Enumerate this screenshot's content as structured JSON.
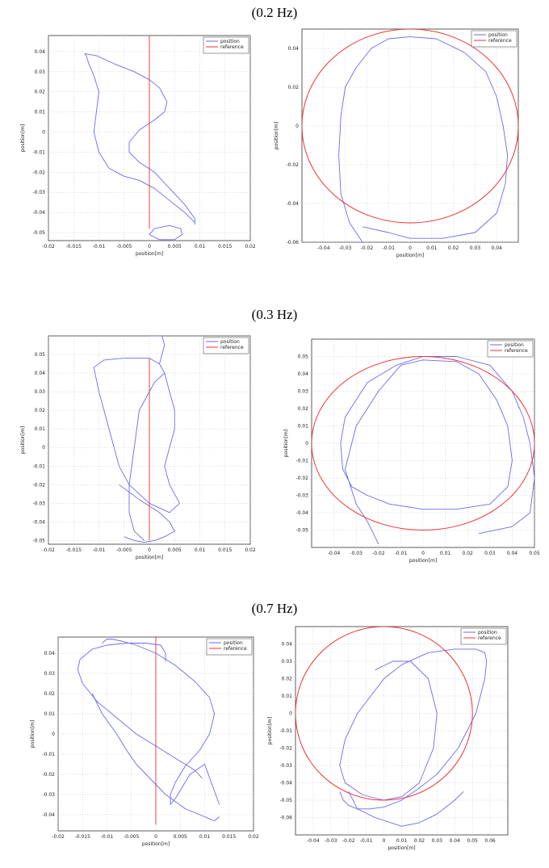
{
  "rows": [
    {
      "title": "(0.2 Hz)"
    },
    {
      "title": "(0.3 Hz)"
    },
    {
      "title": "(0.7 Hz)"
    }
  ],
  "colors": {
    "position": "#6a6af0",
    "reference": "#f03030"
  },
  "chart_data": [
    {
      "type": "line",
      "row": 0,
      "side": "left",
      "xlabel": "position[m]",
      "ylabel": "position[m]",
      "xlim": [
        -0.02,
        0.02
      ],
      "ylim": [
        -0.054,
        0.048
      ],
      "xticks": [
        -0.02,
        -0.015,
        -0.01,
        -0.005,
        0,
        0.005,
        0.01,
        0.015,
        0.02
      ],
      "xticklabels": [
        "-0.02",
        "-0.015",
        "-0.01",
        "-0.005",
        "0",
        "0.005",
        "0.01",
        "0.015",
        "0.02"
      ],
      "yticks": [
        -0.05,
        -0.04,
        -0.03,
        -0.02,
        -0.01,
        0,
        0.01,
        0.02,
        0.03,
        0.04
      ],
      "yticklabels": [
        "-0.05",
        "-0.04",
        "-0.03",
        "-0.02",
        "-0.01",
        "0",
        "0.01",
        "0.02",
        "0.03",
        "0.04"
      ],
      "grid": true,
      "legend": "top-right",
      "series": [
        {
          "name": "position",
          "color": "#6a6af0",
          "x": [
            0.009,
            0.007,
            0.004,
            0.001,
            -0.002,
            -0.005,
            -0.008,
            -0.01,
            -0.011,
            -0.0105,
            -0.01,
            -0.011,
            -0.012,
            -0.0125,
            -0.0128,
            -0.0105,
            -0.007,
            -0.003,
            0,
            0.002,
            0.0035,
            0.003,
            0.001,
            -0.002,
            -0.004,
            -0.004,
            -0.002,
            0.001,
            0.004,
            0.007,
            0.009,
            0.009
          ],
          "y": [
            -0.045,
            -0.04,
            -0.034,
            -0.028,
            -0.024,
            -0.022,
            -0.018,
            -0.01,
            0,
            0.01,
            0.02,
            0.028,
            0.034,
            0.038,
            0.039,
            0.038,
            0.034,
            0.03,
            0.026,
            0.022,
            0.015,
            0.01,
            0.006,
            0.001,
            -0.005,
            -0.01,
            -0.015,
            -0.02,
            -0.028,
            -0.036,
            -0.043,
            -0.046
          ]
        },
        {
          "name": "",
          "color": "#6a6af0",
          "x": [
            0.005,
            0.0065,
            0.0062,
            0.004,
            0.001,
            0.0,
            0.002,
            0.005
          ],
          "y": [
            -0.0535,
            -0.051,
            -0.048,
            -0.0465,
            -0.048,
            -0.051,
            -0.0535,
            -0.0535
          ]
        },
        {
          "name": "reference",
          "color": "#f03030",
          "x": [
            0,
            0
          ],
          "y": [
            -0.048,
            0.048
          ]
        }
      ]
    },
    {
      "type": "line",
      "row": 0,
      "side": "right",
      "xlabel": "position[m]",
      "ylabel": "position[m]",
      "xlim": [
        -0.05,
        0.05
      ],
      "ylim": [
        -0.06,
        0.05
      ],
      "xticks": [
        -0.04,
        -0.03,
        -0.02,
        -0.01,
        0,
        0.01,
        0.02,
        0.03,
        0.04
      ],
      "xticklabels": [
        "-0.04",
        "-0.03",
        "-0.02",
        "-0.01",
        "0",
        "0.01",
        "0.02",
        "0.03",
        "0.04"
      ],
      "yticks": [
        -0.06,
        -0.04,
        -0.02,
        0,
        0.02,
        0.04
      ],
      "yticklabels": [
        "-0.06",
        "-0.04",
        "-0.02",
        "0",
        "0.02",
        "0.04"
      ],
      "grid": true,
      "legend": "top-right",
      "series": [
        {
          "name": "position",
          "color": "#6a6af0",
          "x": [
            -0.022,
            -0.028,
            -0.032,
            -0.033,
            -0.032,
            -0.03,
            -0.025,
            -0.018,
            -0.01,
            0,
            0.012,
            0.025,
            0.035,
            0.04,
            0.043,
            0.045,
            0.044,
            0.04,
            0.03,
            0.015,
            0.0,
            -0.01,
            -0.022
          ],
          "y": [
            -0.06,
            -0.05,
            -0.035,
            -0.015,
            0.005,
            0.02,
            0.03,
            0.04,
            0.045,
            0.046,
            0.045,
            0.038,
            0.028,
            0.015,
            0.0,
            -0.015,
            -0.03,
            -0.045,
            -0.055,
            -0.058,
            -0.058,
            -0.055,
            -0.052
          ]
        },
        {
          "name": "reference",
          "type": "circle",
          "color": "#f03030",
          "center": [
            0,
            0
          ],
          "radius": 0.05
        }
      ]
    },
    {
      "type": "line",
      "row": 1,
      "side": "left",
      "xlabel": "position[m]",
      "ylabel": "position[m]",
      "xlim": [
        -0.02,
        0.02
      ],
      "ylim": [
        -0.052,
        0.06
      ],
      "xticks": [
        -0.02,
        -0.015,
        -0.01,
        -0.005,
        0,
        0.005,
        0.01,
        0.015,
        0.02
      ],
      "xticklabels": [
        "-0.02",
        "-0.015",
        "-0.01",
        "-0.005",
        "0",
        "0.005",
        "0.01",
        "0.015",
        "0.02"
      ],
      "yticks": [
        -0.05,
        -0.04,
        -0.03,
        -0.02,
        -0.01,
        0,
        0.01,
        0.02,
        0.03,
        0.04,
        0.05
      ],
      "yticklabels": [
        "-0.05",
        "-0.04",
        "-0.03",
        "-0.02",
        "-0.01",
        "0",
        "0.01",
        "0.02",
        "0.03",
        "0.04",
        "0.05"
      ],
      "grid": true,
      "legend": "top-right",
      "series": [
        {
          "name": "position",
          "color": "#6a6af0",
          "x": [
            -0.0005,
            0.0025,
            0.003,
            0.0025,
            0.002,
            0.003,
            0.004,
            0.005,
            0.005,
            0.004,
            0.003,
            0.004,
            0.006,
            0.004,
            0.0,
            -0.004,
            -0.006,
            -0.007,
            -0.008,
            -0.009,
            -0.01,
            -0.011,
            -0.009,
            -0.005,
            0.0,
            0.002,
            0.003,
            0.001,
            -0.002,
            -0.003,
            -0.004,
            -0.004,
            -0.003,
            -0.001
          ],
          "y": [
            0.06,
            0.06,
            0.055,
            0.05,
            0.045,
            0.04,
            0.03,
            0.02,
            0.01,
            0.0,
            -0.01,
            -0.02,
            -0.03,
            -0.035,
            -0.03,
            -0.02,
            -0.01,
            0.0,
            0.01,
            0.02,
            0.03,
            0.043,
            0.047,
            0.048,
            0.048,
            0.045,
            0.04,
            0.035,
            0.02,
            0.0,
            -0.02,
            -0.035,
            -0.045,
            -0.05
          ]
        },
        {
          "name": "",
          "color": "#6a6af0",
          "x": [
            -0.006,
            -0.002,
            0.002,
            0.004,
            0.005,
            0.003,
            0.001,
            -0.001,
            -0.003,
            -0.005
          ],
          "y": [
            -0.02,
            -0.028,
            -0.035,
            -0.04,
            -0.045,
            -0.048,
            -0.05,
            -0.051,
            -0.05,
            -0.048
          ]
        },
        {
          "name": "reference",
          "color": "#f03030",
          "x": [
            0,
            0
          ],
          "y": [
            -0.05,
            0.048
          ]
        }
      ]
    },
    {
      "type": "line",
      "row": 1,
      "side": "right",
      "xlabel": "position[m]",
      "ylabel": "position[m]",
      "xlim": [
        -0.05,
        0.05
      ],
      "ylim": [
        -0.06,
        0.06
      ],
      "xticks": [
        -0.04,
        -0.03,
        -0.02,
        -0.01,
        0,
        0.01,
        0.02,
        0.03,
        0.04,
        0.05
      ],
      "xticklabels": [
        "-0.04",
        "-0.03",
        "-0.02",
        "-0.01",
        "0",
        "0.01",
        "0.02",
        "0.03",
        "0.04",
        "0.05"
      ],
      "yticks": [
        -0.05,
        -0.04,
        -0.03,
        -0.02,
        -0.01,
        0,
        0.01,
        0.02,
        0.03,
        0.04,
        0.05
      ],
      "yticklabels": [
        "-0.05",
        "-0.04",
        "-0.03",
        "-0.02",
        "-0.01",
        "0",
        "0.01",
        "0.02",
        "0.03",
        "0.04",
        "0.05"
      ],
      "grid": true,
      "legend": "top-right",
      "series": [
        {
          "name": "position",
          "color": "#6a6af0",
          "x": [
            0.025,
            0.04,
            0.048,
            0.05,
            0.048,
            0.045,
            0.04,
            0.03,
            0.015,
            0.0,
            -0.012,
            -0.025,
            -0.035,
            -0.037,
            -0.036,
            -0.032,
            -0.025,
            -0.015,
            0.0,
            0.015,
            0.03,
            0.038,
            0.04,
            0.038,
            0.033,
            0.025,
            0.015,
            0.0,
            -0.01,
            -0.02,
            -0.03,
            -0.035,
            -0.03,
            -0.025,
            -0.02
          ],
          "y": [
            -0.052,
            -0.048,
            -0.04,
            -0.02,
            0.0,
            0.015,
            0.03,
            0.045,
            0.05,
            0.05,
            0.045,
            0.035,
            0.015,
            0.0,
            -0.015,
            -0.025,
            -0.03,
            -0.035,
            -0.038,
            -0.038,
            -0.035,
            -0.025,
            -0.01,
            0.01,
            0.025,
            0.04,
            0.047,
            0.048,
            0.045,
            0.03,
            0.01,
            -0.015,
            -0.035,
            -0.045,
            -0.058
          ]
        },
        {
          "name": "reference",
          "type": "circle",
          "color": "#f03030",
          "center": [
            0,
            0
          ],
          "radius": 0.05
        }
      ]
    },
    {
      "type": "line",
      "row": 2,
      "side": "left",
      "xlabel": "position[m]",
      "ylabel": "position[m]",
      "xlim": [
        -0.02,
        0.02
      ],
      "ylim": [
        -0.048,
        0.048
      ],
      "xticks": [
        -0.02,
        -0.015,
        -0.01,
        -0.005,
        0,
        0.005,
        0.01,
        0.015,
        0.02
      ],
      "xticklabels": [
        "-0.02",
        "-0.015",
        "-0.01",
        "-0.005",
        "0",
        "0.005",
        "0.01",
        "0.015",
        "0.02"
      ],
      "yticks": [
        -0.04,
        -0.03,
        -0.02,
        -0.01,
        0,
        0.01,
        0.02,
        0.03,
        0.04
      ],
      "yticklabels": [
        "-0.04",
        "-0.03",
        "-0.02",
        "-0.01",
        "0",
        "0.01",
        "0.02",
        "0.03",
        "0.04"
      ],
      "grid": true,
      "legend": "top-right",
      "series": [
        {
          "name": "position",
          "color": "#6a6af0",
          "x": [
            0.0095,
            0.008,
            0.004,
            0.0,
            -0.004,
            -0.008,
            -0.012,
            -0.015,
            -0.016,
            -0.0155,
            -0.013,
            -0.01,
            -0.006,
            -0.002,
            0.001,
            0.002,
            0.002
          ],
          "y": [
            -0.022,
            -0.018,
            -0.012,
            -0.006,
            0.0,
            0.008,
            0.016,
            0.025,
            0.032,
            0.037,
            0.042,
            0.044,
            0.045,
            0.045,
            0.044,
            0.04,
            0.036
          ]
        },
        {
          "name": "",
          "color": "#6a6af0",
          "x": [
            -0.011,
            -0.01,
            -0.009,
            -0.007,
            -0.004,
            0.0,
            0.004,
            0.008,
            0.011,
            0.012,
            0.011,
            0.009,
            0.006,
            0.004,
            0.003,
            0.003,
            0.004,
            0.007,
            0.01,
            0.013
          ],
          "y": [
            0.045,
            0.047,
            0.047,
            0.046,
            0.044,
            0.04,
            0.034,
            0.026,
            0.018,
            0.01,
            0.0,
            -0.008,
            -0.016,
            -0.024,
            -0.03,
            -0.035,
            -0.032,
            -0.02,
            -0.015,
            -0.035
          ]
        },
        {
          "name": "",
          "color": "#6a6af0",
          "x": [
            0.013,
            0.012,
            0.01,
            0.006,
            0.002,
            0.0,
            -0.002,
            -0.004,
            -0.006,
            -0.008,
            -0.011,
            -0.013
          ],
          "y": [
            -0.041,
            -0.043,
            -0.041,
            -0.037,
            -0.03,
            -0.025,
            -0.02,
            -0.015,
            -0.008,
            0.0,
            0.01,
            0.02
          ]
        },
        {
          "name": "reference",
          "color": "#f03030",
          "x": [
            0,
            0
          ],
          "y": [
            -0.045,
            0.048
          ]
        }
      ]
    },
    {
      "type": "line",
      "row": 2,
      "side": "right",
      "xlabel": "position[m]",
      "ylabel": "position[m]",
      "xlim": [
        -0.05,
        0.07
      ],
      "ylim": [
        -0.07,
        0.05
      ],
      "xticks": [
        -0.04,
        -0.03,
        -0.02,
        -0.01,
        0,
        0.01,
        0.02,
        0.03,
        0.04,
        0.05,
        0.06
      ],
      "xticklabels": [
        "-0.04",
        "-0.03",
        "-0.02",
        "-0.01",
        "0",
        "0.01",
        "0.02",
        "0.03",
        "0.04",
        "0.05",
        "0.06"
      ],
      "yticks": [
        -0.06,
        -0.05,
        -0.04,
        -0.03,
        -0.02,
        -0.01,
        0,
        0.01,
        0.02,
        0.03,
        0.04
      ],
      "yticklabels": [
        "-0.06",
        "-0.05",
        "-0.04",
        "-0.03",
        "-0.02",
        "-0.01",
        "0",
        "0.01",
        "0.02",
        "0.03",
        "0.04"
      ],
      "grid": true,
      "legend": "top-right",
      "series": [
        {
          "name": "position",
          "color": "#6a6af0",
          "x": [
            -0.025,
            -0.023,
            -0.02,
            -0.015,
            -0.008,
            0.0,
            0.01,
            0.02,
            0.03,
            0.042,
            0.052,
            0.057,
            0.058,
            0.057,
            0.052,
            0.04,
            0.025,
            0.01,
            0.0,
            -0.015,
            -0.022,
            -0.025,
            -0.022,
            -0.012,
            0.0,
            0.01,
            0.02,
            0.028,
            0.03,
            0.025,
            0.015,
            0.005,
            -0.005
          ],
          "y": [
            -0.045,
            -0.05,
            -0.053,
            -0.055,
            -0.055,
            -0.054,
            -0.05,
            -0.043,
            -0.035,
            -0.02,
            0.0,
            0.02,
            0.03,
            0.035,
            0.037,
            0.037,
            0.035,
            0.028,
            0.02,
            0.0,
            -0.015,
            -0.03,
            -0.04,
            -0.047,
            -0.05,
            -0.048,
            -0.04,
            -0.02,
            0.0,
            0.02,
            0.03,
            0.03,
            0.025
          ]
        },
        {
          "name": "",
          "color": "#6a6af0",
          "x": [
            -0.02,
            -0.015,
            -0.005,
            0.01,
            0.02,
            0.03,
            0.04,
            0.045
          ],
          "y": [
            -0.045,
            -0.055,
            -0.06,
            -0.065,
            -0.063,
            -0.058,
            -0.05,
            -0.045
          ]
        },
        {
          "name": "reference",
          "type": "circle",
          "color": "#f03030",
          "center": [
            0,
            0
          ],
          "radius": 0.05
        }
      ]
    }
  ]
}
